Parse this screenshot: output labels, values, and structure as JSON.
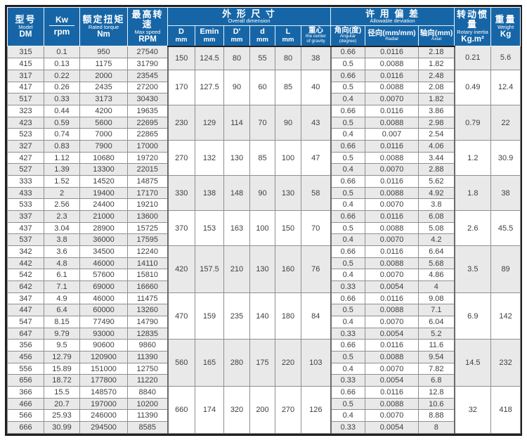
{
  "colors": {
    "header_bg": "#1666a7",
    "header_text": "#ffffff",
    "stripe": "#e9e9e9",
    "grid": "#8f8f8f",
    "frame": "#202024",
    "body_text": "#3f3f3f",
    "section_line": "#6a6a6a"
  },
  "header": {
    "model": {
      "zh": "型号",
      "en": "Model",
      "unit": "DM"
    },
    "kw": {
      "top": "Kw",
      "bottom": "rpm"
    },
    "torque": {
      "zh": "额定扭矩",
      "en": "Rated torque",
      "unit": "Nm"
    },
    "speed": {
      "zh": "最高转速",
      "en": "Max speed",
      "unit": "RPM"
    },
    "dimension": {
      "zh": "外 形 尺 寸",
      "en": "Overall dimension"
    },
    "dim_sub": {
      "D": {
        "top": "D",
        "unit": "mm"
      },
      "Emin": {
        "top": "Emin",
        "unit": "mm"
      },
      "Dp": {
        "top": "D′",
        "unit": "mm"
      },
      "d": {
        "top": "d",
        "unit": "mm"
      },
      "L": {
        "top": "L",
        "unit": "mm"
      },
      "gravity": {
        "zh": "重心",
        "en1": "the center",
        "en2": "of gravity"
      }
    },
    "deviation": {
      "zh": "许 用 偏 差",
      "en": "Allowable deviation",
      "angular": {
        "zh": "角向(度)",
        "en1": "Angular",
        "en2": "(degree)"
      },
      "radial": {
        "zh": "径向(mm/mm)",
        "en1": "Radial"
      },
      "axial": {
        "zh": "轴向(mm)",
        "en1": "Axial"
      }
    },
    "inertia": {
      "zh": "转动惯量",
      "en": "Rotary inertia",
      "unit": "Kg.m²"
    },
    "weight": {
      "zh": "重量",
      "en": "Weight",
      "unit": "Kg"
    }
  },
  "chart_data": {
    "type": "table",
    "columns": [
      "型号 Model DM",
      "Kw/rpm",
      "额定扭矩 Rated torque Nm",
      "最高转速 Max speed RPM",
      "D mm",
      "Emin mm",
      "D′ mm",
      "d mm",
      "L mm",
      "重心 the center of gravity",
      "角向(度) Angular (degree)",
      "径向(mm/mm) Radial",
      "轴向(mm) Axial",
      "转动惯量 Rotary inertia Kg.m²",
      "重量 Weight Kg"
    ],
    "groups": [
      {
        "D": "150",
        "Emin": "124.5",
        "Dp": "80",
        "d": "55",
        "L": "80",
        "gravity": "38",
        "inertia": "0.21",
        "weight": "5.6",
        "rows": [
          {
            "model": "315",
            "kw": "0.1",
            "torque": "950",
            "speed": "27540",
            "angular": "0.66",
            "radial": "0.0116",
            "axial": "2.18"
          },
          {
            "model": "415",
            "kw": "0.13",
            "torque": "1175",
            "speed": "31790",
            "angular": "0.5",
            "radial": "0.0088",
            "axial": "1.82"
          }
        ]
      },
      {
        "D": "170",
        "Emin": "127.5",
        "Dp": "90",
        "d": "60",
        "L": "85",
        "gravity": "40",
        "inertia": "0.49",
        "weight": "12.4",
        "rows": [
          {
            "model": "317",
            "kw": "0.22",
            "torque": "2000",
            "speed": "23545",
            "angular": "0.66",
            "radial": "0.0116",
            "axial": "2.48"
          },
          {
            "model": "417",
            "kw": "0.26",
            "torque": "2435",
            "speed": "27200",
            "angular": "0.5",
            "radial": "0.0088",
            "axial": "2.08"
          },
          {
            "model": "517",
            "kw": "0.33",
            "torque": "3173",
            "speed": "30430",
            "angular": "0.4",
            "radial": "0.0070",
            "axial": "1.82"
          }
        ]
      },
      {
        "D": "230",
        "Emin": "129",
        "Dp": "114",
        "d": "70",
        "L": "90",
        "gravity": "43",
        "inertia": "0.79",
        "weight": "22",
        "rows": [
          {
            "model": "323",
            "kw": "0.44",
            "torque": "4200",
            "speed": "19635",
            "angular": "0.66",
            "radial": "0.0116",
            "axial": "3.86"
          },
          {
            "model": "423",
            "kw": "0.59",
            "torque": "5600",
            "speed": "22695",
            "angular": "0.5",
            "radial": "0.0088",
            "axial": "2.98"
          },
          {
            "model": "523",
            "kw": "0.74",
            "torque": "7000",
            "speed": "22865",
            "angular": "0.4",
            "radial": "0.007",
            "axial": "2.54"
          }
        ]
      },
      {
        "D": "270",
        "Emin": "132",
        "Dp": "130",
        "d": "85",
        "L": "100",
        "gravity": "47",
        "inertia": "1.2",
        "weight": "30.9",
        "rows": [
          {
            "model": "327",
            "kw": "0.83",
            "torque": "7900",
            "speed": "17000",
            "angular": "0.66",
            "radial": "0.0116",
            "axial": "4.06"
          },
          {
            "model": "427",
            "kw": "1.12",
            "torque": "10680",
            "speed": "19720",
            "angular": "0.5",
            "radial": "0.0088",
            "axial": "3.44"
          },
          {
            "model": "527",
            "kw": "1.39",
            "torque": "13300",
            "speed": "22015",
            "angular": "0.4",
            "radial": "0.0070",
            "axial": "2.88"
          }
        ]
      },
      {
        "D": "330",
        "Emin": "138",
        "Dp": "148",
        "d": "90",
        "L": "130",
        "gravity": "58",
        "inertia": "1.8",
        "weight": "38",
        "rows": [
          {
            "model": "333",
            "kw": "1.52",
            "torque": "14520",
            "speed": "14875",
            "angular": "0.66",
            "radial": "0.0116",
            "axial": "5.62"
          },
          {
            "model": "433",
            "kw": "2",
            "torque": "19400",
            "speed": "17170",
            "angular": "0.5",
            "radial": "0.0088",
            "axial": "4.92"
          },
          {
            "model": "533",
            "kw": "2.56",
            "torque": "24400",
            "speed": "19210",
            "angular": "0.4",
            "radial": "0.0070",
            "axial": "3.8"
          }
        ]
      },
      {
        "D": "370",
        "Emin": "153",
        "Dp": "163",
        "d": "100",
        "L": "150",
        "gravity": "70",
        "inertia": "2.6",
        "weight": "45.5",
        "rows": [
          {
            "model": "337",
            "kw": "2.3",
            "torque": "21000",
            "speed": "13600",
            "angular": "0.66",
            "radial": "0.0116",
            "axial": "6.08"
          },
          {
            "model": "437",
            "kw": "3.04",
            "torque": "28900",
            "speed": "15725",
            "angular": "0.5",
            "radial": "0.0088",
            "axial": "5.08"
          },
          {
            "model": "537",
            "kw": "3.8",
            "torque": "36000",
            "speed": "17595",
            "angular": "0.4",
            "radial": "0.0070",
            "axial": "4.2"
          }
        ]
      },
      {
        "D": "420",
        "Emin": "157.5",
        "Dp": "210",
        "d": "130",
        "L": "160",
        "gravity": "76",
        "inertia": "3.5",
        "weight": "89",
        "rows": [
          {
            "model": "342",
            "kw": "3.6",
            "torque": "34500",
            "speed": "12240",
            "angular": "0.66",
            "radial": "0.0116",
            "axial": "6.64"
          },
          {
            "model": "442",
            "kw": "4.8",
            "torque": "46000",
            "speed": "14110",
            "angular": "0.5",
            "radial": "0.0088",
            "axial": "5.68"
          },
          {
            "model": "542",
            "kw": "6.1",
            "torque": "57600",
            "speed": "15810",
            "angular": "0.4",
            "radial": "0.0070",
            "axial": "4.86"
          },
          {
            "model": "642",
            "kw": "7.1",
            "torque": "69000",
            "speed": "16660",
            "angular": "0.33",
            "radial": "0.0054",
            "axial": "4"
          }
        ]
      },
      {
        "D": "470",
        "Emin": "159",
        "Dp": "235",
        "d": "140",
        "L": "180",
        "gravity": "84",
        "inertia": "6.9",
        "weight": "142",
        "rows": [
          {
            "model": "347",
            "kw": "4.9",
            "torque": "46000",
            "speed": "11475",
            "angular": "0.66",
            "radial": "0.0116",
            "axial": "9.08"
          },
          {
            "model": "447",
            "kw": "6.4",
            "torque": "60000",
            "speed": "13260",
            "angular": "0.5",
            "radial": "0.0088",
            "axial": "7.1"
          },
          {
            "model": "547",
            "kw": "8.15",
            "torque": "77490",
            "speed": "14790",
            "angular": "0.4",
            "radial": "0.0070",
            "axial": "6.04"
          },
          {
            "model": "647",
            "kw": "9.79",
            "torque": "93000",
            "speed": "12835",
            "angular": "0.33",
            "radial": "0.0054",
            "axial": "5.2"
          }
        ]
      },
      {
        "D": "560",
        "Emin": "165",
        "Dp": "280",
        "d": "175",
        "L": "220",
        "gravity": "103",
        "inertia": "14.5",
        "weight": "232",
        "rows": [
          {
            "model": "356",
            "kw": "9.5",
            "torque": "90600",
            "speed": "9860",
            "angular": "0.66",
            "radial": "0.0116",
            "axial": "11.6"
          },
          {
            "model": "456",
            "kw": "12.79",
            "torque": "120900",
            "speed": "11390",
            "angular": "0.5",
            "radial": "0.0088",
            "axial": "9.54"
          },
          {
            "model": "556",
            "kw": "15.89",
            "torque": "151000",
            "speed": "12750",
            "angular": "0.4",
            "radial": "0.0070",
            "axial": "7.82"
          },
          {
            "model": "656",
            "kw": "18.72",
            "torque": "177800",
            "speed": "11220",
            "angular": "0.33",
            "radial": "0.0054",
            "axial": "6.8"
          }
        ]
      },
      {
        "D": "660",
        "Emin": "174",
        "Dp": "320",
        "d": "200",
        "L": "270",
        "gravity": "126",
        "inertia": "32",
        "weight": "418",
        "rows": [
          {
            "model": "366",
            "kw": "15.5",
            "torque": "148570",
            "speed": "8840",
            "angular": "0.66",
            "radial": "0.0116",
            "axial": "12.8"
          },
          {
            "model": "466",
            "kw": "20.7",
            "torque": "197000",
            "speed": "10200",
            "angular": "0.5",
            "radial": "0.0088",
            "axial": "10.6"
          },
          {
            "model": "566",
            "kw": "25.93",
            "torque": "246000",
            "speed": "11390",
            "angular": "0.4",
            "radial": "0.0070",
            "axial": "8.88"
          },
          {
            "model": "666",
            "kw": "30.99",
            "torque": "294500",
            "speed": "8585",
            "angular": "0.33",
            "radial": "0.0054",
            "axial": "8"
          }
        ]
      }
    ]
  }
}
